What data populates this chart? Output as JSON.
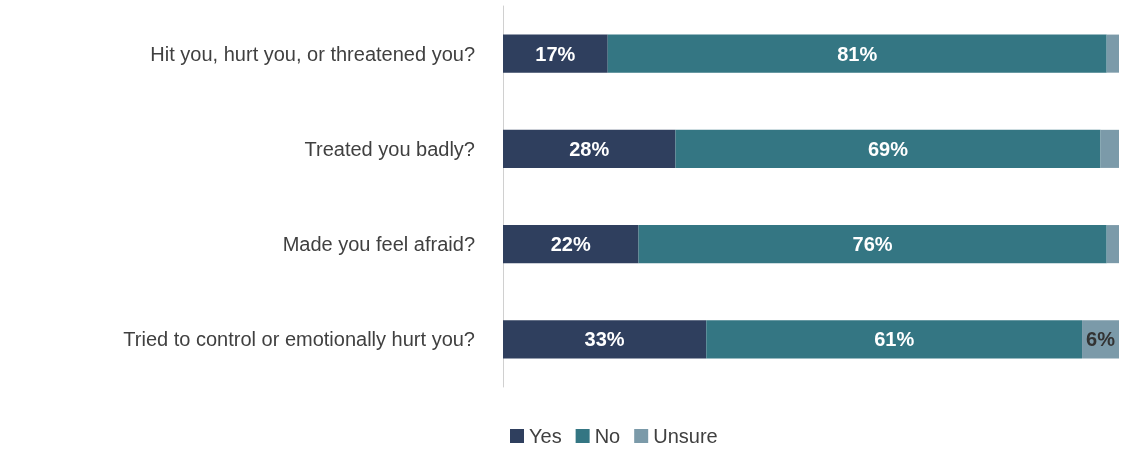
{
  "chart_data": {
    "type": "bar",
    "orientation": "horizontal",
    "stacked": true,
    "legend": "bottom",
    "categories": [
      "Hit you, hurt you, or threatened you?",
      "Treated you badly?",
      "Made you feel afraid?",
      "Tried to control or emotionally hurt you?"
    ],
    "series": [
      {
        "name": "Yes",
        "color": "#2f3f5e",
        "values": [
          17,
          28,
          22,
          33
        ],
        "value_labels": [
          "17%",
          "28%",
          "22%",
          "33%"
        ]
      },
      {
        "name": "No",
        "color": "#347683",
        "values": [
          81,
          69,
          76,
          61
        ],
        "value_labels": [
          "81%",
          "69%",
          "76%",
          "61%"
        ]
      },
      {
        "name": "Unsure",
        "color": "#7b9aa9",
        "values": [
          2,
          3,
          2,
          6
        ],
        "value_labels": [
          null,
          null,
          null,
          "6%"
        ]
      }
    ]
  }
}
